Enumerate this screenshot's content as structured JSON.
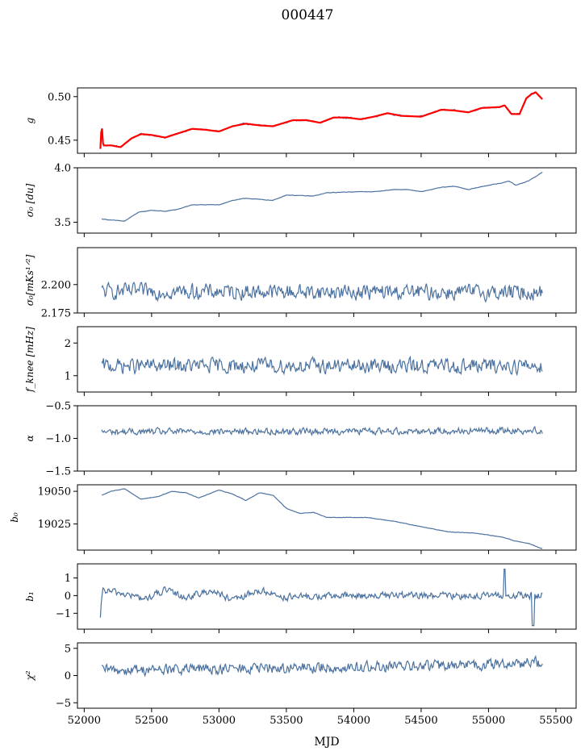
{
  "title": "000447",
  "xlabel": "MJD",
  "colors": {
    "series": "#4c72a0",
    "model": "#ff0000",
    "axis": "#000000"
  },
  "chart_data": {
    "type": "line",
    "title": "000447",
    "shared_x": {
      "label": "MJD",
      "lim": [
        51950,
        55650
      ],
      "ticks": [
        52000,
        52500,
        53000,
        53500,
        54000,
        54500,
        55000,
        55500
      ],
      "tick_labels": [
        "52000",
        "52500",
        "53000",
        "53500",
        "54000",
        "54500",
        "55000",
        "55500"
      ]
    },
    "panels": [
      {
        "key": "g",
        "ylabel": "g",
        "ylim": [
          0.435,
          0.51
        ],
        "yticks": [
          0.45,
          0.5
        ],
        "ytick_labels": [
          "0.45",
          "0.50"
        ],
        "model_overlay": true,
        "knots": [
          [
            52120,
            0.44
          ],
          [
            52130,
            0.47
          ],
          [
            52140,
            0.444
          ],
          [
            52200,
            0.444
          ],
          [
            52270,
            0.442
          ],
          [
            52350,
            0.452
          ],
          [
            52420,
            0.457
          ],
          [
            52500,
            0.456
          ],
          [
            52600,
            0.453
          ],
          [
            52700,
            0.458
          ],
          [
            52800,
            0.463
          ],
          [
            52900,
            0.462
          ],
          [
            53000,
            0.46
          ],
          [
            53100,
            0.466
          ],
          [
            53200,
            0.469
          ],
          [
            53300,
            0.467
          ],
          [
            53400,
            0.466
          ],
          [
            53550,
            0.473
          ],
          [
            53650,
            0.473
          ],
          [
            53750,
            0.47
          ],
          [
            53850,
            0.476
          ],
          [
            53950,
            0.476
          ],
          [
            54050,
            0.474
          ],
          [
            54150,
            0.477
          ],
          [
            54250,
            0.481
          ],
          [
            54350,
            0.478
          ],
          [
            54500,
            0.477
          ],
          [
            54650,
            0.485
          ],
          [
            54750,
            0.484
          ],
          [
            54850,
            0.482
          ],
          [
            54950,
            0.487
          ],
          [
            55080,
            0.488
          ],
          [
            55120,
            0.49
          ],
          [
            55170,
            0.48
          ],
          [
            55230,
            0.48
          ],
          [
            55280,
            0.498
          ],
          [
            55320,
            0.503
          ],
          [
            55350,
            0.505
          ],
          [
            55400,
            0.497
          ]
        ],
        "noise": 0.0008
      },
      {
        "key": "sigma0",
        "ylabel": "σ₀ [du]",
        "ylim": [
          3.4,
          4.0
        ],
        "yticks": [
          3.5,
          4.0
        ],
        "ytick_labels": [
          "3.5",
          "4.0"
        ],
        "knots": [
          [
            52130,
            3.53
          ],
          [
            52200,
            3.52
          ],
          [
            52300,
            3.51
          ],
          [
            52400,
            3.59
          ],
          [
            52500,
            3.61
          ],
          [
            52600,
            3.6
          ],
          [
            52700,
            3.62
          ],
          [
            52800,
            3.66
          ],
          [
            52900,
            3.66
          ],
          [
            53000,
            3.66
          ],
          [
            53100,
            3.7
          ],
          [
            53200,
            3.72
          ],
          [
            53300,
            3.71
          ],
          [
            53400,
            3.7
          ],
          [
            53500,
            3.75
          ],
          [
            53700,
            3.74
          ],
          [
            53800,
            3.77
          ],
          [
            54000,
            3.78
          ],
          [
            54150,
            3.78
          ],
          [
            54300,
            3.8
          ],
          [
            54400,
            3.8
          ],
          [
            54500,
            3.78
          ],
          [
            54650,
            3.82
          ],
          [
            54750,
            3.83
          ],
          [
            54850,
            3.8
          ],
          [
            55000,
            3.84
          ],
          [
            55100,
            3.86
          ],
          [
            55150,
            3.88
          ],
          [
            55200,
            3.84
          ],
          [
            55300,
            3.88
          ],
          [
            55350,
            3.92
          ],
          [
            55400,
            3.96
          ]
        ],
        "noise": 0.002
      },
      {
        "key": "sigma0_rate",
        "ylabel": "σ₀[mKs¹ᐟ²]",
        "ylim": [
          2.175,
          2.2325
        ],
        "yticks": [
          2.175,
          2.2
        ],
        "ytick_labels": [
          "2.175",
          "2.200"
        ],
        "knots": [
          [
            52130,
            2.194
          ],
          [
            55400,
            2.193
          ]
        ],
        "noise": 0.006
      },
      {
        "key": "fknee",
        "ylabel": "f_knee [mHz]",
        "ylim": [
          0.5,
          2.5
        ],
        "yticks": [
          1,
          2
        ],
        "ytick_labels": [
          "1",
          "2"
        ],
        "knots": [
          [
            52130,
            1.3
          ],
          [
            55400,
            1.3
          ]
        ],
        "noise": 0.2
      },
      {
        "key": "alpha",
        "ylabel": "α",
        "ylim": [
          -1.5,
          -0.5
        ],
        "yticks": [
          -1.5,
          -1.0,
          -0.5
        ],
        "ytick_labels": [
          "−1.5",
          "−1.0",
          "−0.5"
        ],
        "knots": [
          [
            52130,
            -0.9
          ],
          [
            55400,
            -0.88
          ]
        ],
        "noise": 0.045
      },
      {
        "key": "b0",
        "ylabel": "b₀",
        "ylim": [
          19005,
          19055
        ],
        "yticks": [
          19025,
          19050
        ],
        "ytick_labels": [
          "19025",
          "19050"
        ],
        "knots": [
          [
            52130,
            19047
          ],
          [
            52200,
            19050
          ],
          [
            52300,
            19052
          ],
          [
            52420,
            19044
          ],
          [
            52550,
            19046
          ],
          [
            52650,
            19050
          ],
          [
            52750,
            19049
          ],
          [
            52850,
            19045
          ],
          [
            53000,
            19051
          ],
          [
            53100,
            19048
          ],
          [
            53200,
            19043
          ],
          [
            53300,
            19049
          ],
          [
            53400,
            19047
          ],
          [
            53500,
            19037
          ],
          [
            53600,
            19033
          ],
          [
            53700,
            19034
          ],
          [
            53800,
            19030
          ],
          [
            53900,
            19030
          ],
          [
            54100,
            19030
          ],
          [
            54300,
            19027
          ],
          [
            54500,
            19023
          ],
          [
            54700,
            19019
          ],
          [
            54900,
            19018
          ],
          [
            55100,
            19015
          ],
          [
            55200,
            19012
          ],
          [
            55300,
            19010
          ],
          [
            55400,
            19006
          ]
        ],
        "noise": 0.15
      },
      {
        "key": "b1",
        "ylabel": "b₁",
        "ylim": [
          -1.9,
          1.8
        ],
        "yticks": [
          -1,
          0,
          1
        ],
        "ytick_labels": [
          "−1",
          "0",
          "1"
        ],
        "knots": [
          [
            52120,
            -1.4
          ],
          [
            52135,
            0.3
          ],
          [
            52300,
            0.1
          ],
          [
            52450,
            -0.2
          ],
          [
            52600,
            0.3
          ],
          [
            52750,
            -0.1
          ],
          [
            52950,
            0.3
          ],
          [
            53100,
            -0.3
          ],
          [
            53300,
            0.3
          ],
          [
            53500,
            -0.1
          ],
          [
            54000,
            0.0
          ],
          [
            55400,
            0.0
          ]
        ],
        "noise": 0.18
      },
      {
        "key": "chi2",
        "ylabel": "χ²",
        "ylim": [
          -6,
          6
        ],
        "yticks": [
          -5,
          0,
          5
        ],
        "ytick_labels": [
          "−5",
          "0",
          "5"
        ],
        "knots": [
          [
            52130,
            1.0
          ],
          [
            53000,
            1.2
          ],
          [
            54000,
            1.5
          ],
          [
            55000,
            2.0
          ],
          [
            55400,
            2.5
          ]
        ],
        "noise": 0.9
      }
    ]
  }
}
